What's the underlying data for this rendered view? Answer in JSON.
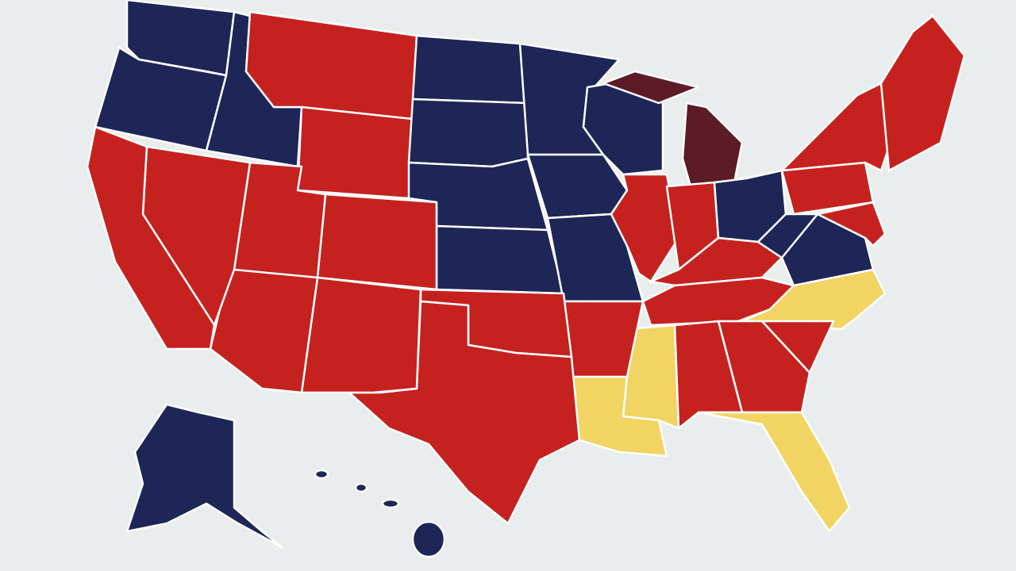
{
  "map": {
    "background": "#e9eded",
    "border": "#ffffff",
    "palette": [
      "#1d2657",
      "#c5221f",
      "#f2d463",
      "#5c1b27"
    ]
  }
}
